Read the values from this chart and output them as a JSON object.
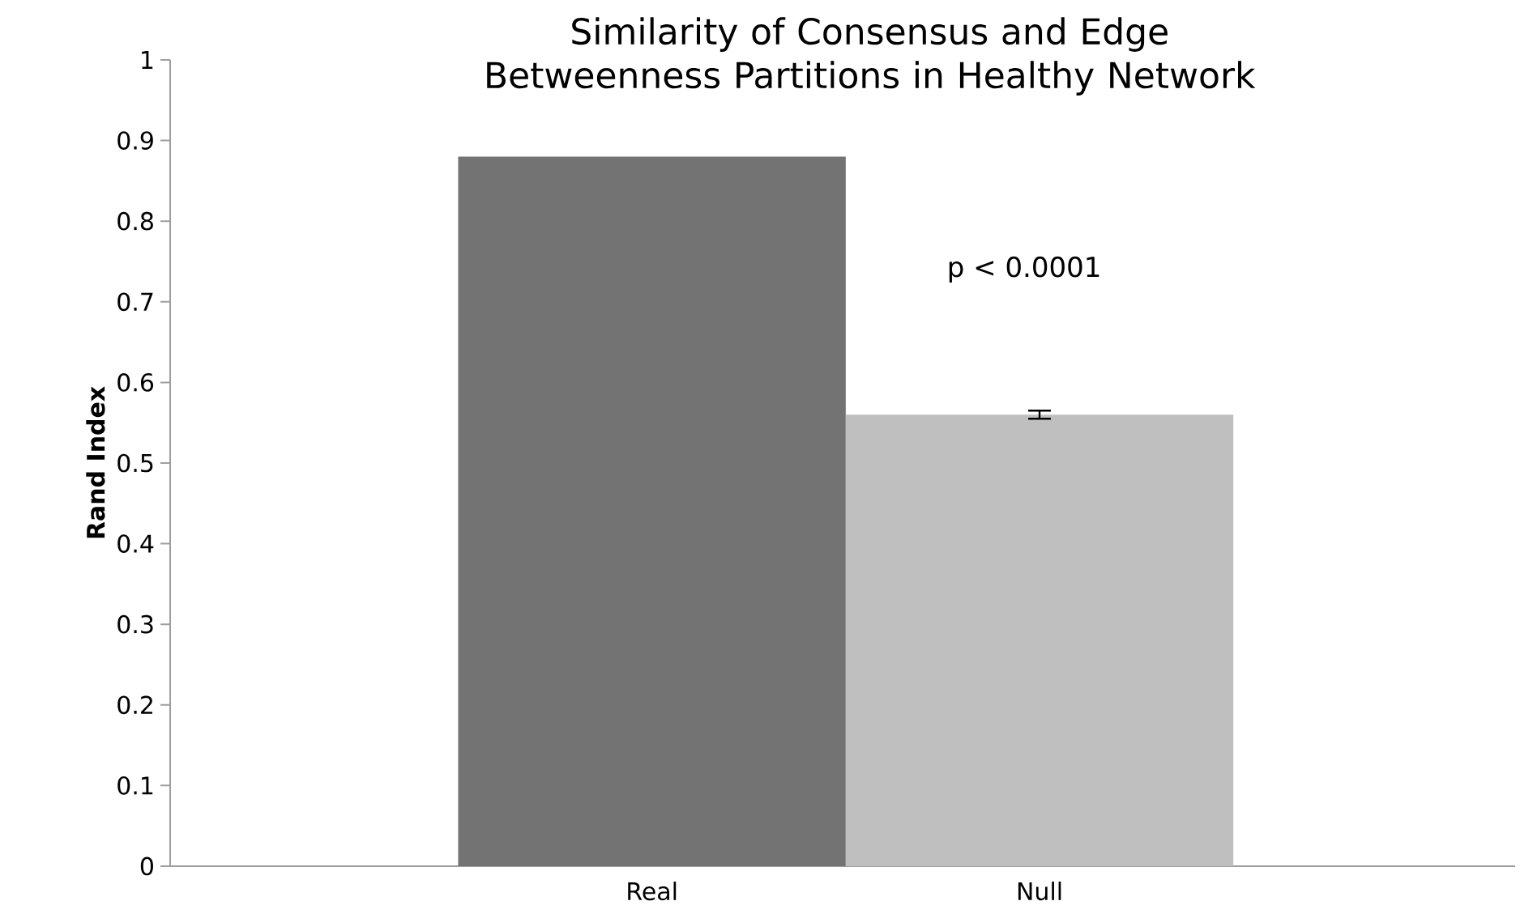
{
  "chart_data": {
    "type": "bar",
    "title": "Similarity of Consensus and Edge Betweenness Partitions in Healthy Network",
    "ylabel": "Rand Index",
    "categories": [
      "Real",
      "Null"
    ],
    "values": [
      0.88,
      0.56
    ],
    "colors": [
      "#737373",
      "#bfbfbf"
    ],
    "errors": [
      null,
      0.005
    ],
    "ylim": [
      0,
      1
    ],
    "yticks": [
      0,
      0.1,
      0.2,
      0.3,
      0.4,
      0.5,
      0.6,
      0.7,
      0.8,
      0.9,
      1
    ],
    "annotations": [
      "p < 0.0001"
    ],
    "grid": false
  }
}
